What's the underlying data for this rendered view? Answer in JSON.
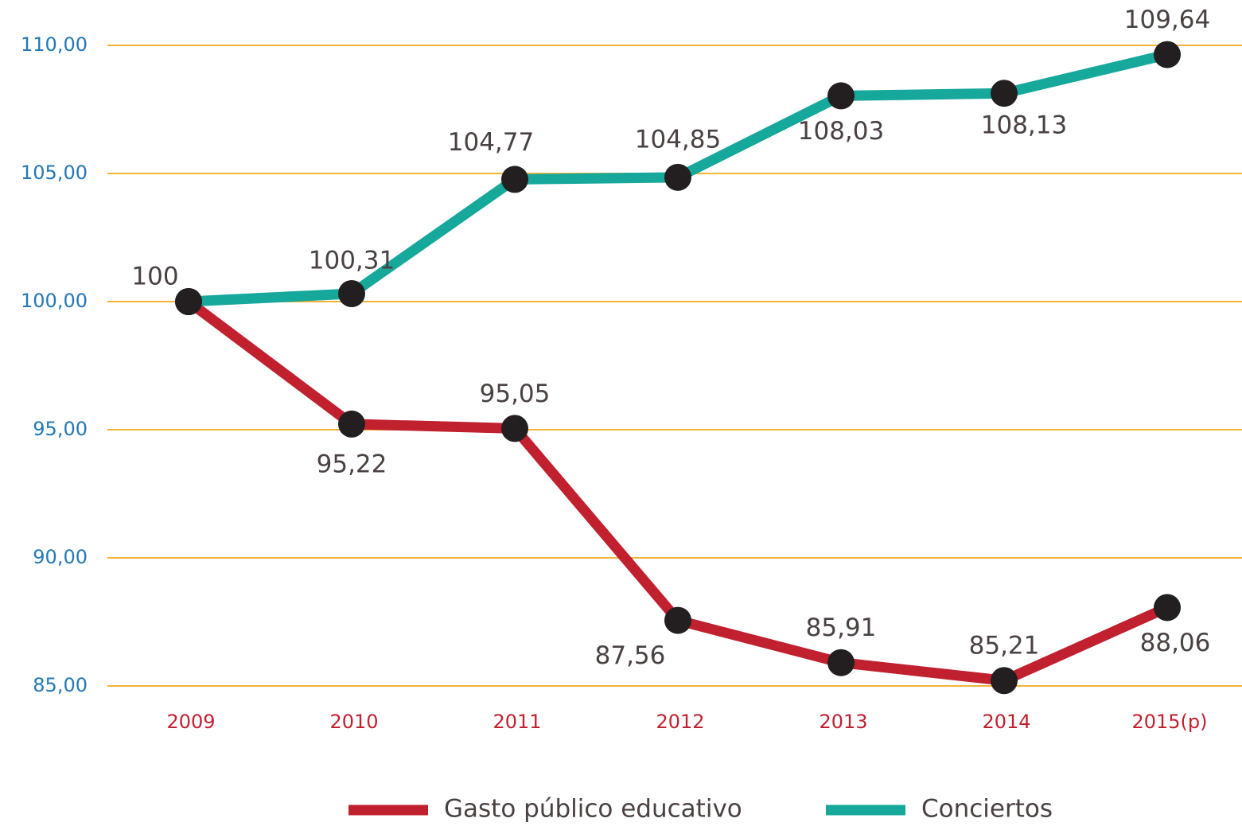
{
  "chart_data": {
    "type": "line",
    "categories": [
      "2009",
      "2010",
      "2011",
      "2012",
      "2013",
      "2014",
      "2015(p)"
    ],
    "series": [
      {
        "name": "Gasto público educativo",
        "color": "#c1202f",
        "values": [
          100,
          95.22,
          95.05,
          87.56,
          85.91,
          85.21,
          88.06
        ],
        "value_labels": [
          null,
          "95,22",
          "95,05",
          "87,56",
          "85,91",
          "85,21",
          "88,06"
        ]
      },
      {
        "name": "Conciertos",
        "color": "#15a89b",
        "values": [
          100,
          100.31,
          104.77,
          104.85,
          108.03,
          108.13,
          109.64
        ],
        "value_labels": [
          "100",
          "100,31",
          "104,77",
          "104,85",
          "108,03",
          "108,13",
          "109,64"
        ]
      }
    ],
    "ylim": [
      85,
      110
    ],
    "yticks": [
      {
        "value": 85,
        "label": "85,00"
      },
      {
        "value": 90,
        "label": "90,00"
      },
      {
        "value": 95,
        "label": "95,00"
      },
      {
        "value": 100,
        "label": "100,00"
      },
      {
        "value": 105,
        "label": "105,00"
      },
      {
        "value": 110,
        "label": "110,00"
      }
    ],
    "grid": true,
    "legend": "bottom",
    "grid_color": "#f4b336",
    "marker_color": "#231f20"
  }
}
